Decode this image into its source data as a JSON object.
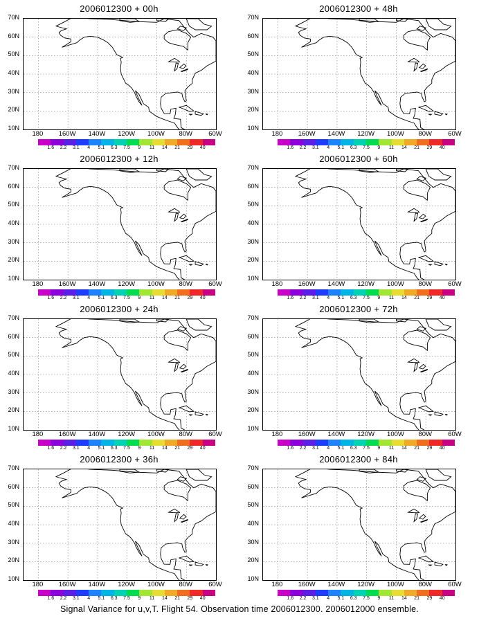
{
  "panels": [
    {
      "title": "2006012300 + 00h",
      "column": 0,
      "row": 0,
      "blobs": []
    },
    {
      "title": "2006012300 + 48h",
      "column": 1,
      "row": 0,
      "blobs": []
    },
    {
      "title": "2006012300 + 12h",
      "column": 0,
      "row": 1,
      "blobs": []
    },
    {
      "title": "2006012300 + 60h",
      "column": 1,
      "row": 1,
      "blobs": []
    },
    {
      "title": "2006012300 + 24h",
      "column": 0,
      "row": 2,
      "blobs": []
    },
    {
      "title": "2006012300 + 72h",
      "column": 1,
      "row": 2,
      "blobs": []
    },
    {
      "title": "2006012300 + 36h",
      "column": 0,
      "row": 3,
      "blobs": []
    },
    {
      "title": "2006012300 + 84h",
      "column": 1,
      "row": 3,
      "blobs": []
    }
  ],
  "lat_labels": [
    "70N",
    "60N",
    "50N",
    "40N",
    "30N",
    "20N",
    "10N"
  ],
  "lon_labels": [
    "180",
    "160W",
    "140W",
    "120W",
    "100W",
    "80W",
    "60W"
  ],
  "colorbar": {
    "labels": [
      "1.6",
      "2.2",
      "3.1",
      "4",
      "5.1",
      "6.3",
      "7.5",
      "9",
      "11",
      "14",
      "21",
      "29",
      "40"
    ],
    "colors": [
      "#c800c8",
      "#8c00dc",
      "#5a1ee6",
      "#1e3cff",
      "#1e82ff",
      "#00b4e6",
      "#00d2b4",
      "#00dc50",
      "#a0e632",
      "#e6dc32",
      "#f0aa28",
      "#f06e1e",
      "#f02828",
      "#c80082"
    ]
  },
  "footer": "Signal Variance for u,v,T. Flight 54. Observation time 2006012300. 2006012000 ensemble."
}
